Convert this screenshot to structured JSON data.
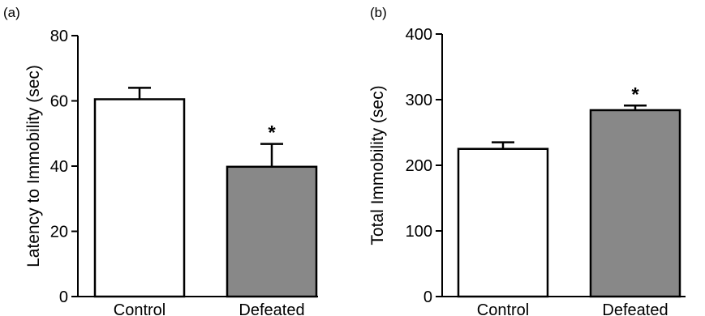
{
  "chart_data": [
    {
      "type": "bar",
      "panel_label": "(a)",
      "ylabel": "Latency to Immobility (sec)",
      "xlabel": "",
      "categories": [
        "Control",
        "Defeated"
      ],
      "values": [
        60.5,
        39.8
      ],
      "errors": [
        3.5,
        7.0
      ],
      "significance": [
        "",
        "*"
      ],
      "bar_colors": [
        "#ffffff",
        "#888888"
      ],
      "ylim": [
        0,
        80
      ],
      "yticks": [
        0,
        20,
        40,
        60,
        80
      ],
      "grid": false
    },
    {
      "type": "bar",
      "panel_label": "(b)",
      "ylabel": "Total Immobility (sec)",
      "xlabel": "",
      "categories": [
        "Control",
        "Defeated"
      ],
      "values": [
        225,
        284
      ],
      "errors": [
        10,
        7
      ],
      "significance": [
        "",
        "*"
      ],
      "bar_colors": [
        "#ffffff",
        "#888888"
      ],
      "ylim": [
        0,
        400
      ],
      "yticks": [
        0,
        100,
        200,
        300,
        400
      ],
      "grid": false
    }
  ]
}
